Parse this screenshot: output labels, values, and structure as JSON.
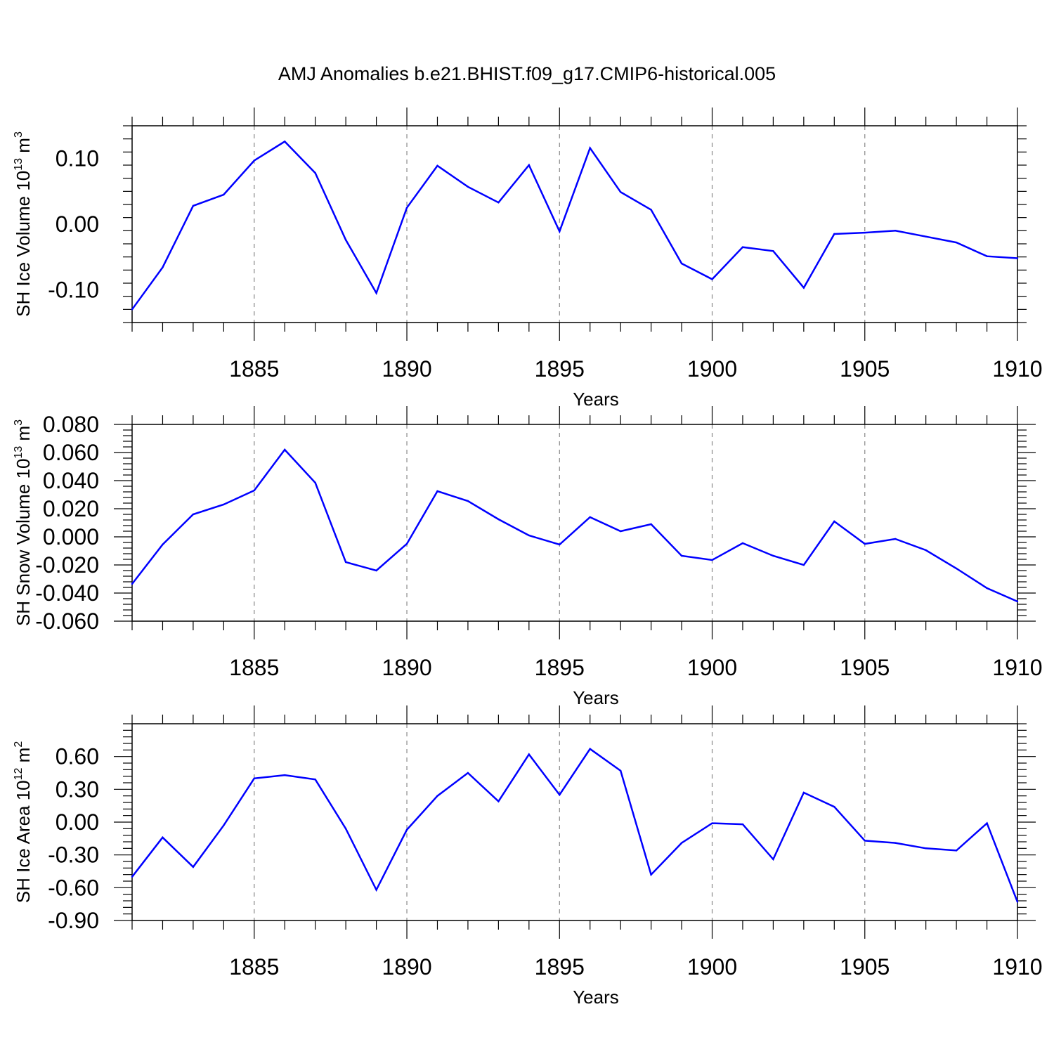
{
  "title": "AMJ Anomalies b.e21.BHIST.f09_g17.CMIP6-historical.005",
  "line_color": "#0000ff",
  "chart_data": [
    {
      "type": "line",
      "ylabel": {
        "text": "SH Ice Volume 10",
        "sup1": "13",
        "unit": " m",
        "sup2": "3"
      },
      "xlabel": "Years",
      "xlim": [
        1881,
        1910
      ],
      "ylim": [
        -0.15,
        0.15
      ],
      "x_ticks": [
        1885,
        1890,
        1895,
        1900,
        1905,
        1910
      ],
      "x_tick_labels": [
        "1885",
        "1890",
        "1895",
        "1900",
        "1905",
        "1910"
      ],
      "y_ticks": [
        -0.1,
        0.0,
        0.1
      ],
      "y_tick_labels": [
        "-0.10",
        "0.00",
        "0.10"
      ],
      "x": [
        1881,
        1882,
        1883,
        1884,
        1885,
        1886,
        1887,
        1888,
        1889,
        1890,
        1891,
        1892,
        1893,
        1894,
        1895,
        1896,
        1897,
        1898,
        1899,
        1900,
        1901,
        1902,
        1903,
        1904,
        1905,
        1906,
        1907,
        1908,
        1909,
        1910
      ],
      "values": [
        -0.13,
        -0.066,
        0.028,
        0.045,
        0.097,
        0.126,
        0.078,
        -0.024,
        -0.105,
        0.025,
        0.089,
        0.057,
        0.033,
        0.09,
        -0.011,
        0.116,
        0.049,
        0.022,
        -0.06,
        -0.084,
        -0.035,
        -0.041,
        -0.097,
        -0.015,
        -0.013,
        -0.01,
        -0.019,
        -0.028,
        -0.049,
        -0.052
      ]
    },
    {
      "type": "line",
      "ylabel": {
        "text": "SH Snow Volume 10",
        "sup1": "13",
        "unit": " m",
        "sup2": "3"
      },
      "xlabel": "Years",
      "xlim": [
        1881,
        1910
      ],
      "ylim": [
        -0.06,
        0.08
      ],
      "x_ticks": [
        1885,
        1890,
        1895,
        1900,
        1905,
        1910
      ],
      "x_tick_labels": [
        "1885",
        "1890",
        "1895",
        "1900",
        "1905",
        "1910"
      ],
      "y_ticks": [
        -0.06,
        -0.04,
        -0.02,
        0.0,
        0.02,
        0.04,
        0.06,
        0.08
      ],
      "y_tick_labels": [
        "-0.060",
        "-0.040",
        "-0.020",
        "0.000",
        "0.020",
        "0.040",
        "0.060",
        "0.080"
      ],
      "x": [
        1881,
        1882,
        1883,
        1884,
        1885,
        1886,
        1887,
        1888,
        1889,
        1890,
        1891,
        1892,
        1893,
        1894,
        1895,
        1896,
        1897,
        1898,
        1899,
        1900,
        1901,
        1902,
        1903,
        1904,
        1905,
        1906,
        1907,
        1908,
        1909,
        1910
      ],
      "values": [
        -0.0335,
        -0.0055,
        0.016,
        0.023,
        0.033,
        0.062,
        0.0385,
        -0.018,
        -0.024,
        -0.005,
        0.0325,
        0.0255,
        0.0125,
        0.001,
        -0.0055,
        0.014,
        0.004,
        0.009,
        -0.0135,
        -0.0165,
        -0.0045,
        -0.0135,
        -0.02,
        0.011,
        -0.005,
        -0.0015,
        -0.0095,
        -0.0225,
        -0.0365,
        -0.046
      ]
    },
    {
      "type": "line",
      "ylabel": {
        "text": "SH Ice Area 10",
        "sup1": "12",
        "unit": " m",
        "sup2": "2"
      },
      "xlabel": "Years",
      "xlim": [
        1881,
        1910
      ],
      "ylim": [
        -0.9,
        0.9
      ],
      "x_ticks": [
        1885,
        1890,
        1895,
        1900,
        1905,
        1910
      ],
      "x_tick_labels": [
        "1885",
        "1890",
        "1895",
        "1900",
        "1905",
        "1910"
      ],
      "y_ticks": [
        -0.9,
        -0.6,
        -0.3,
        0.0,
        0.3,
        0.6
      ],
      "y_tick_labels": [
        "-0.90",
        "-0.60",
        "-0.30",
        "0.00",
        "0.30",
        "0.60"
      ],
      "x": [
        1881,
        1882,
        1883,
        1884,
        1885,
        1886,
        1887,
        1888,
        1889,
        1890,
        1891,
        1892,
        1893,
        1894,
        1895,
        1896,
        1897,
        1898,
        1899,
        1900,
        1901,
        1902,
        1903,
        1904,
        1905,
        1906,
        1907,
        1908,
        1909,
        1910
      ],
      "values": [
        -0.5,
        -0.14,
        -0.41,
        -0.03,
        0.4,
        0.43,
        0.39,
        -0.06,
        -0.62,
        -0.07,
        0.24,
        0.45,
        0.19,
        0.62,
        0.25,
        0.67,
        0.47,
        -0.48,
        -0.19,
        -0.01,
        -0.02,
        -0.34,
        0.27,
        0.14,
        -0.17,
        -0.19,
        -0.24,
        -0.26,
        -0.01,
        -0.73
      ]
    }
  ]
}
